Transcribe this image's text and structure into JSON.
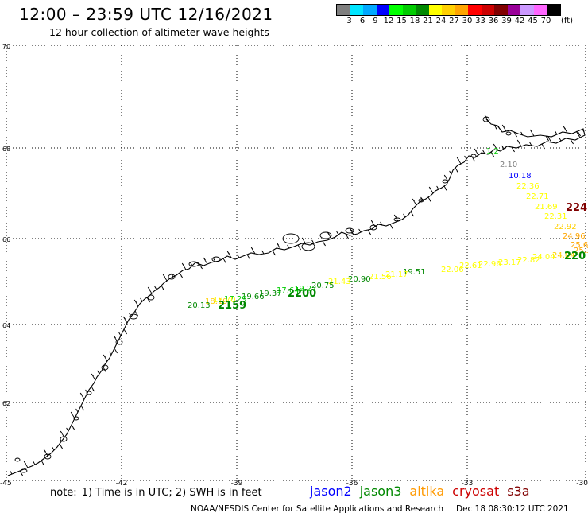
{
  "header": {
    "title": "12:00 – 23:59 UTC 12/16/2021",
    "subtitle": "12 hour collection of altimeter wave heights"
  },
  "legend": {
    "unit": "(ft)",
    "labels": [
      "3",
      "6",
      "9",
      "12",
      "15",
      "18",
      "21",
      "24",
      "27",
      "30",
      "33",
      "36",
      "39",
      "42",
      "45",
      "70"
    ],
    "colors": [
      "#7f7f7f",
      "#00e5ff",
      "#00a8ff",
      "#0000ff",
      "#00ff00",
      "#00cc00",
      "#008800",
      "#ffff00",
      "#ffd000",
      "#ffa500",
      "#ff0000",
      "#cc0000",
      "#800000",
      "#990099",
      "#cc99ff",
      "#ff66ff",
      "#000000"
    ]
  },
  "axes": {
    "lon_labels": [
      "-45",
      "-42",
      "-39",
      "-36",
      "-33",
      "-30"
    ],
    "lat_labels": [
      "70",
      "68",
      "66",
      "64",
      "62"
    ]
  },
  "map": {
    "coastline": "greenland-southeast-coast",
    "wave_labels": [
      {
        "text": "1.2"
      },
      {
        "text": "2.10"
      },
      {
        "text": "10.18"
      },
      {
        "text": "22.36"
      },
      {
        "text": "22.71"
      },
      {
        "text": "21.69"
      },
      {
        "text": "22.31"
      },
      {
        "text": "22.92"
      },
      {
        "text": "24.96"
      },
      {
        "text": "25.6"
      },
      {
        "text": "25.3"
      },
      {
        "text": "24.04"
      },
      {
        "text": "24.04"
      },
      {
        "text": "22.82"
      },
      {
        "text": "23.17"
      },
      {
        "text": "22.96"
      },
      {
        "text": "22.61"
      },
      {
        "text": "22.06"
      },
      {
        "text": "19.51"
      },
      {
        "text": "21.17"
      },
      {
        "text": "21.56"
      },
      {
        "text": "20.90"
      },
      {
        "text": "21.43"
      },
      {
        "text": "20.75"
      },
      {
        "text": "19.27"
      },
      {
        "text": "17.64"
      },
      {
        "text": "19.37"
      },
      {
        "text": "19.66"
      },
      {
        "text": "17.29"
      },
      {
        "text": "18.70"
      },
      {
        "text": "18.19"
      },
      {
        "text": "20.13"
      }
    ],
    "time_labels": [
      {
        "text": "224",
        "color": "#800000"
      },
      {
        "text": "220",
        "color": "#008800"
      },
      {
        "text": "2200",
        "color": "#008800"
      },
      {
        "text": "2159",
        "color": "#008800"
      }
    ]
  },
  "footer": {
    "note_label": "note:",
    "note": "1) Time is in UTC; 2) SWH is in feet",
    "satellites": [
      {
        "name": "jason2",
        "color": "#0000ff"
      },
      {
        "name": "jason3",
        "color": "#008800"
      },
      {
        "name": "altika",
        "color": "#ff9900"
      },
      {
        "name": "cryosat",
        "color": "#cc0000"
      },
      {
        "name": "s3a",
        "color": "#800000"
      }
    ],
    "credit": "NOAA/NESDIS Center for Satellite Applications and Research",
    "timestamp": "Dec 18 08:30:12 UTC 2021"
  }
}
